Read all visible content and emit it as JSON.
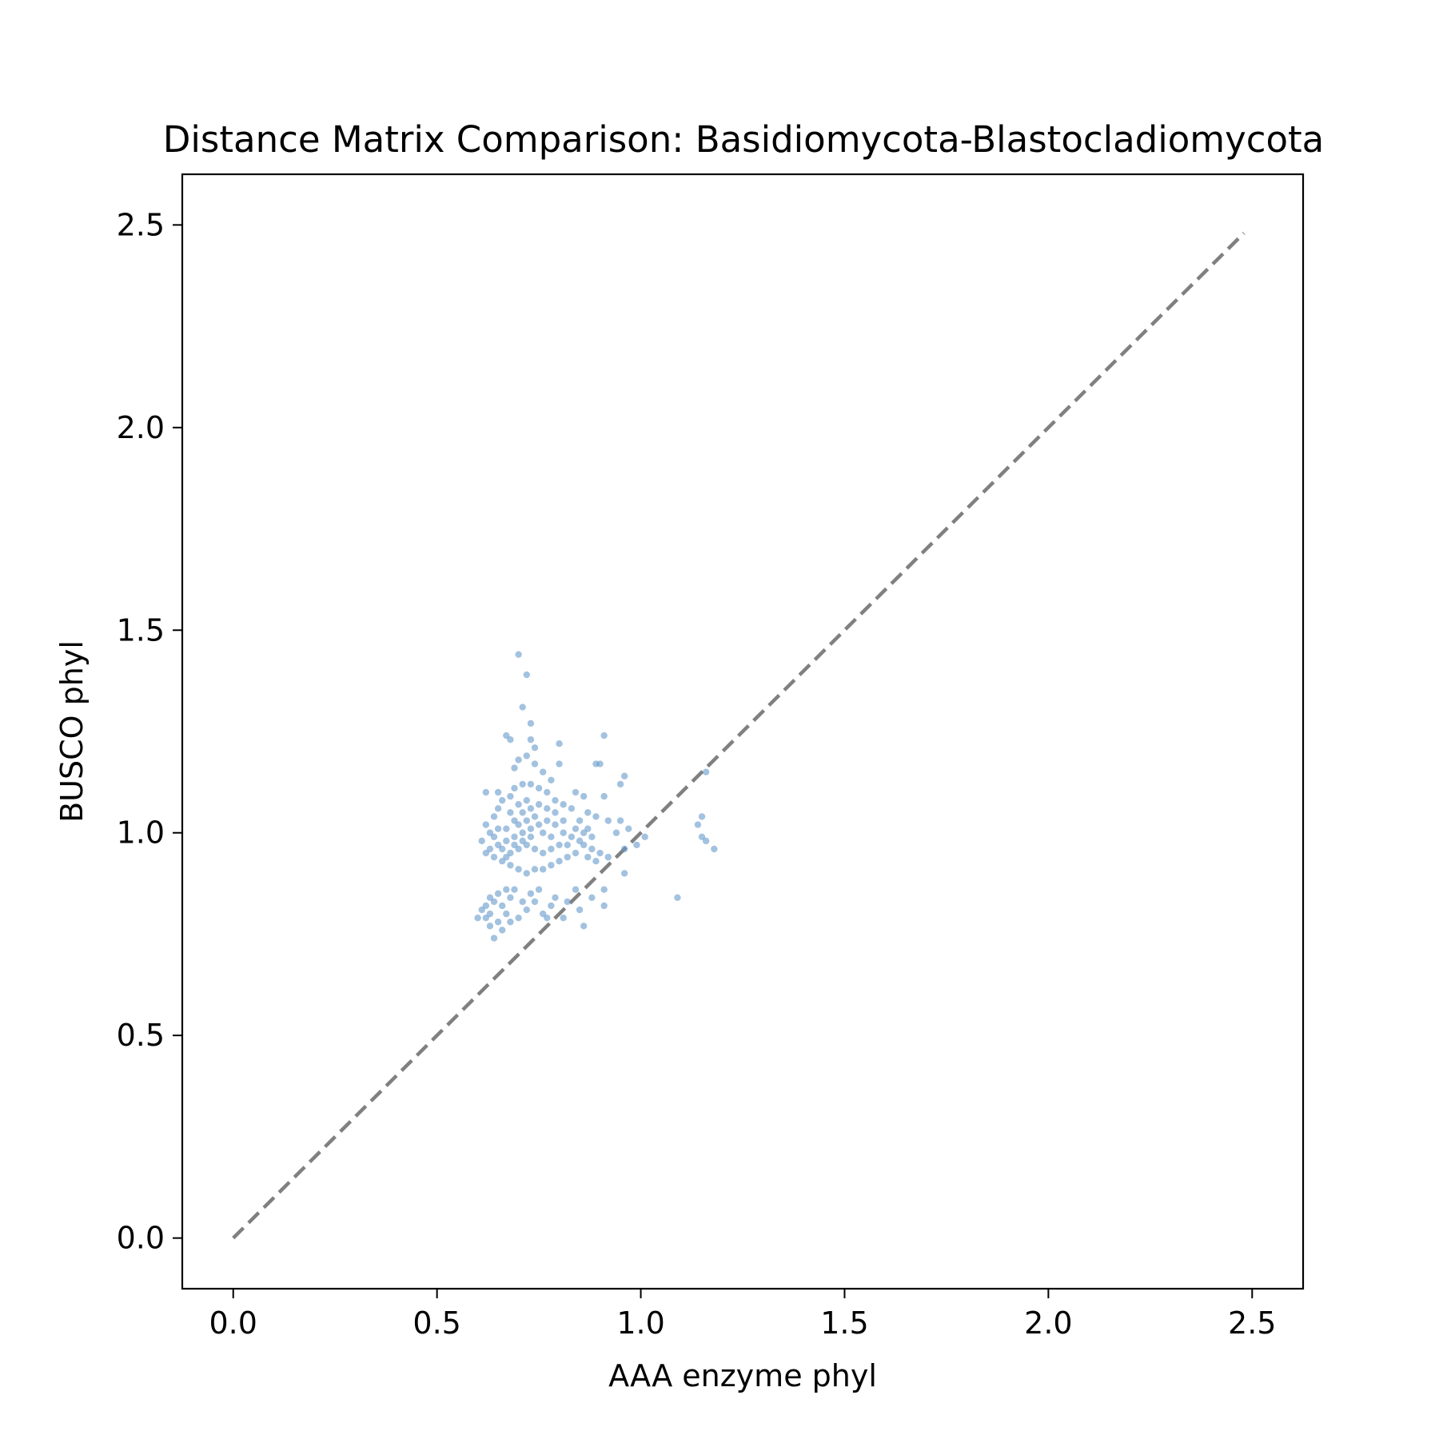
{
  "chart_data": {
    "type": "scatter",
    "title": "Distance Matrix Comparison: Basidiomycota-Blastocladiomycota",
    "xlabel": "AAA enzyme phyl",
    "ylabel": "BUSCO phyl",
    "xlim": [
      -0.125,
      2.625
    ],
    "ylim": [
      -0.125,
      2.625
    ],
    "xticks": [
      0.0,
      0.5,
      1.0,
      1.5,
      2.0,
      2.5
    ],
    "yticks": [
      0.0,
      0.5,
      1.0,
      1.5,
      2.0,
      2.5
    ],
    "xtick_labels": [
      "0.0",
      "0.5",
      "1.0",
      "1.5",
      "2.0",
      "2.5"
    ],
    "ytick_labels": [
      "0.0",
      "0.5",
      "1.0",
      "1.5",
      "2.0",
      "2.5"
    ],
    "grid": false,
    "point_color": "#6699cc",
    "point_alpha": 0.6,
    "reference_line": {
      "from": [
        0.0,
        0.0
      ],
      "to": [
        2.48,
        2.48
      ],
      "style": "dashed",
      "color": "#808080"
    },
    "series": [
      {
        "values_note": "dense cluster points (x, y) in data units",
        "points": [
          [
            0.7,
            1.44
          ],
          [
            0.72,
            1.39
          ],
          [
            0.71,
            1.31
          ],
          [
            0.73,
            1.27
          ],
          [
            0.73,
            1.23
          ],
          [
            0.74,
            1.21
          ],
          [
            0.67,
            1.24
          ],
          [
            0.68,
            1.23
          ],
          [
            0.8,
            1.22
          ],
          [
            0.91,
            1.24
          ],
          [
            0.89,
            1.17
          ],
          [
            0.9,
            1.17
          ],
          [
            0.96,
            1.14
          ],
          [
            0.95,
            1.12
          ],
          [
            1.16,
            1.15
          ],
          [
            0.8,
            1.17
          ],
          [
            0.7,
            1.18
          ],
          [
            0.72,
            1.19
          ],
          [
            0.65,
            1.1
          ],
          [
            0.62,
            1.1
          ],
          [
            0.69,
            1.16
          ],
          [
            0.74,
            1.17
          ],
          [
            0.76,
            1.15
          ],
          [
            0.78,
            1.13
          ],
          [
            0.84,
            1.1
          ],
          [
            0.86,
            1.09
          ],
          [
            0.91,
            1.09
          ],
          [
            0.87,
            1.05
          ],
          [
            0.89,
            1.04
          ],
          [
            0.92,
            1.03
          ],
          [
            0.95,
            1.03
          ],
          [
            0.94,
            1.0
          ],
          [
            0.97,
            1.01
          ],
          [
            1.01,
            0.99
          ],
          [
            0.99,
            0.97
          ],
          [
            0.96,
            0.96
          ],
          [
            0.92,
            0.94
          ],
          [
            0.96,
            0.9
          ],
          [
            0.91,
            0.86
          ],
          [
            0.91,
            0.82
          ],
          [
            1.15,
            1.04
          ],
          [
            1.14,
            1.02
          ],
          [
            1.15,
            0.99
          ],
          [
            1.16,
            0.98
          ],
          [
            1.18,
            0.96
          ],
          [
            1.09,
            0.84
          ],
          [
            0.86,
            0.77
          ],
          [
            0.81,
            0.79
          ],
          [
            0.64,
            0.74
          ],
          [
            0.62,
            0.79
          ],
          [
            0.6,
            0.79
          ],
          [
            0.61,
            0.81
          ],
          [
            0.63,
            0.8
          ],
          [
            0.65,
            0.78
          ],
          [
            0.67,
            0.8
          ],
          [
            0.66,
            0.82
          ],
          [
            0.64,
            0.83
          ],
          [
            0.62,
            0.82
          ],
          [
            0.63,
            0.84
          ],
          [
            0.65,
            0.85
          ],
          [
            0.67,
            0.86
          ],
          [
            0.69,
            0.86
          ],
          [
            0.68,
            0.84
          ],
          [
            0.66,
            0.76
          ],
          [
            0.63,
            0.77
          ],
          [
            0.68,
            0.78
          ],
          [
            0.7,
            0.79
          ],
          [
            0.72,
            0.81
          ],
          [
            0.74,
            0.83
          ],
          [
            0.76,
            0.8
          ],
          [
            0.78,
            0.82
          ],
          [
            0.77,
            0.79
          ],
          [
            0.75,
            0.86
          ],
          [
            0.79,
            0.84
          ],
          [
            0.82,
            0.83
          ],
          [
            0.84,
            0.86
          ],
          [
            0.88,
            0.84
          ],
          [
            0.85,
            0.81
          ],
          [
            0.73,
            0.85
          ],
          [
            0.71,
            0.83
          ],
          [
            0.62,
            0.95
          ],
          [
            0.61,
            0.98
          ],
          [
            0.63,
            1.0
          ],
          [
            0.62,
            1.02
          ],
          [
            0.64,
            1.04
          ],
          [
            0.65,
            1.06
          ],
          [
            0.66,
            1.08
          ],
          [
            0.68,
            1.09
          ],
          [
            0.69,
            1.11
          ],
          [
            0.71,
            1.12
          ],
          [
            0.73,
            1.12
          ],
          [
            0.75,
            1.11
          ],
          [
            0.77,
            1.1
          ],
          [
            0.79,
            1.08
          ],
          [
            0.81,
            1.07
          ],
          [
            0.83,
            1.06
          ],
          [
            0.85,
            1.03
          ],
          [
            0.87,
            1.01
          ],
          [
            0.88,
            0.99
          ],
          [
            0.86,
            0.97
          ],
          [
            0.84,
            0.95
          ],
          [
            0.82,
            0.94
          ],
          [
            0.8,
            0.93
          ],
          [
            0.78,
            0.92
          ],
          [
            0.76,
            0.91
          ],
          [
            0.74,
            0.91
          ],
          [
            0.72,
            0.9
          ],
          [
            0.7,
            0.91
          ],
          [
            0.68,
            0.92
          ],
          [
            0.66,
            0.93
          ],
          [
            0.64,
            0.94
          ],
          [
            0.63,
            0.96
          ],
          [
            0.65,
            0.97
          ],
          [
            0.67,
            0.98
          ],
          [
            0.69,
            0.99
          ],
          [
            0.71,
            1.0
          ],
          [
            0.73,
            1.01
          ],
          [
            0.75,
            1.02
          ],
          [
            0.77,
            1.03
          ],
          [
            0.79,
            1.02
          ],
          [
            0.81,
            1.0
          ],
          [
            0.83,
            0.99
          ],
          [
            0.85,
            0.98
          ],
          [
            0.8,
            0.97
          ],
          [
            0.78,
            0.96
          ],
          [
            0.76,
            0.95
          ],
          [
            0.74,
            0.96
          ],
          [
            0.72,
            0.97
          ],
          [
            0.7,
            0.96
          ],
          [
            0.68,
            0.95
          ],
          [
            0.66,
            0.96
          ],
          [
            0.67,
            1.01
          ],
          [
            0.69,
            1.03
          ],
          [
            0.71,
            1.05
          ],
          [
            0.73,
            1.06
          ],
          [
            0.75,
            1.07
          ],
          [
            0.72,
            1.08
          ],
          [
            0.7,
            1.07
          ],
          [
            0.68,
            1.05
          ],
          [
            0.74,
            1.04
          ],
          [
            0.76,
            1.0
          ],
          [
            0.78,
            0.99
          ],
          [
            0.82,
            0.97
          ],
          [
            0.84,
            1.01
          ],
          [
            0.86,
            1.0
          ],
          [
            0.88,
            0.96
          ],
          [
            0.9,
            0.95
          ],
          [
            0.89,
            0.93
          ],
          [
            0.87,
            0.94
          ],
          [
            0.81,
            1.03
          ],
          [
            0.79,
            1.05
          ],
          [
            0.77,
            1.06
          ],
          [
            0.7,
            1.02
          ],
          [
            0.72,
            1.03
          ],
          [
            0.71,
            0.98
          ],
          [
            0.73,
            0.99
          ],
          [
            0.69,
            0.97
          ],
          [
            0.67,
            0.94
          ],
          [
            0.65,
            1.01
          ],
          [
            0.64,
            0.99
          ]
        ]
      }
    ]
  }
}
